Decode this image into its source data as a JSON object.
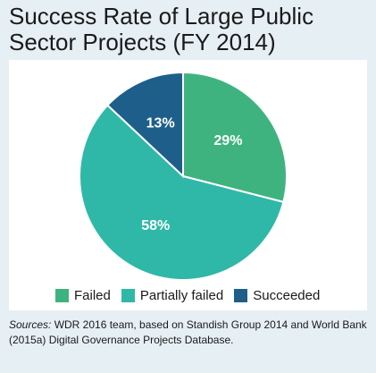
{
  "chart_data": {
    "type": "pie",
    "title": "Success Rate of Large Public Sector Projects (FY 2014)",
    "slices": [
      {
        "label": "Failed",
        "value": 29,
        "display": "29%",
        "color": "#3fb37f"
      },
      {
        "label": "Partially failed",
        "value": 58,
        "display": "58%",
        "color": "#2fb8a8"
      },
      {
        "label": "Succeeded",
        "value": 13,
        "display": "13%",
        "color": "#1d5f8a"
      }
    ],
    "legend": "bottom"
  },
  "source": {
    "prefix": "Sources:",
    "text": " WDR 2016 team, based on Standish Group 2014 and World Bank (2015a) Digital Governance Projects Database."
  }
}
